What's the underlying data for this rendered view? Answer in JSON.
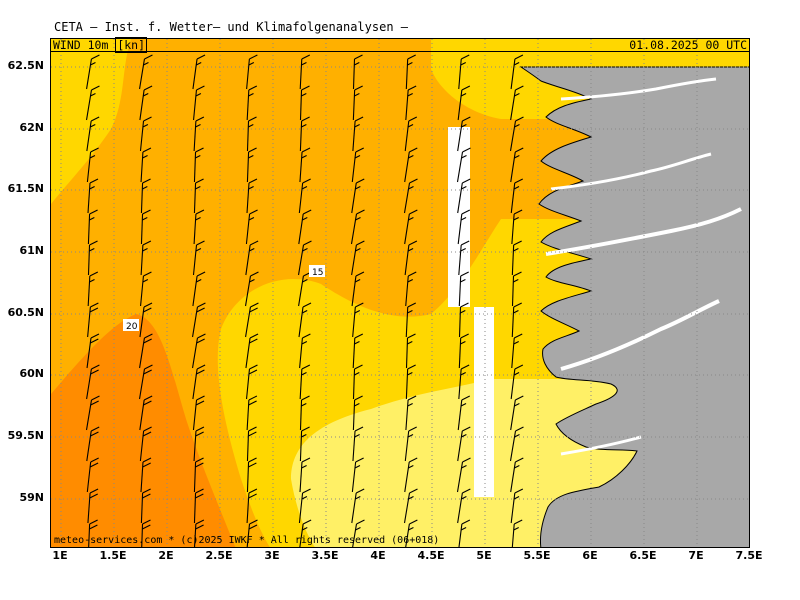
{
  "header": {
    "title": "CETA — Inst. f. Wetter— und Klimafolgenanalysen —"
  },
  "map": {
    "field_prefix": "WIND_10m_",
    "field_unit": "[kn]",
    "datetime": "01.08.2025 00 UTC",
    "copyright": "meteo-services.com * (c)2025 IWKF * All rights reserved (06+018)",
    "x_ticks": [
      "1E",
      "1.5E",
      "2E",
      "2.5E",
      "3E",
      "3.5E",
      "4E",
      "4.5E",
      "5E",
      "5.5E",
      "6E",
      "6.5E",
      "7E",
      "7.5E"
    ],
    "y_ticks": [
      "62.5N",
      "62N",
      "61.5N",
      "61N",
      "60.5N",
      "60N",
      "59.5N",
      "59N"
    ],
    "contour_labels": [
      "15",
      "20"
    ],
    "colors": {
      "speed_10_15": "#fff066",
      "speed_15_20": "#ffd700",
      "speed_20_25": "#ffb000",
      "speed_25_30": "#ff8c00",
      "land": "#a8a8a8",
      "coast_outline": "#000000",
      "grid": "#888888"
    },
    "wind_direction": "southerly, ~170-190 deg over open sea"
  }
}
